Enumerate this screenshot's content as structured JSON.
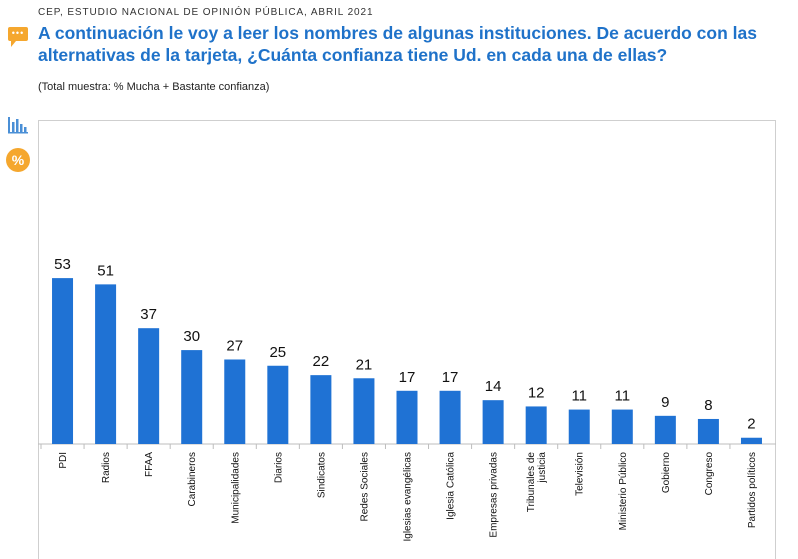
{
  "header": {
    "source": "CEP, ESTUDIO NACIONAL DE OPINIÓN PÚBLICA, ABRIL 2021",
    "title": "A continuación le voy a leer los nombres de algunas instituciones. De acuerdo con las alternativas de la tarjeta, ¿Cuánta confianza tiene Ud. en cada una de ellas?",
    "subtitle": "(Total muestra: % Mucha + Bastante confianza)"
  },
  "sidebar": {
    "chat_icon_text": "•••",
    "percent_icon_text": "%"
  },
  "colors": {
    "bar": "#1f72d4",
    "title": "#1f72c9",
    "accent": "#f5a72e"
  },
  "icons": [
    "chat-bubble-icon",
    "bar-chart-icon",
    "percent-icon"
  ],
  "chart_data": {
    "type": "bar",
    "categories": [
      [
        "PDI"
      ],
      [
        "Radios"
      ],
      [
        "FFAA"
      ],
      [
        "Carabineros"
      ],
      [
        "Municipalidades"
      ],
      [
        "Diarios"
      ],
      [
        "Sindicatos"
      ],
      [
        "Redes Sociales"
      ],
      [
        "Iglesias evangélicas"
      ],
      [
        "Iglesia Católica"
      ],
      [
        "Empresas privadas"
      ],
      [
        "Tribunales de",
        "justicia"
      ],
      [
        "Televisión"
      ],
      [
        "Ministerio Público"
      ],
      [
        "Gobierno"
      ],
      [
        "Congreso"
      ],
      [
        "Partidos políticos"
      ]
    ],
    "values": [
      53,
      51,
      37,
      30,
      27,
      25,
      22,
      21,
      17,
      17,
      14,
      12,
      11,
      11,
      9,
      8,
      2
    ],
    "ylim": [
      0,
      100
    ],
    "grid": false,
    "legend": "none"
  }
}
